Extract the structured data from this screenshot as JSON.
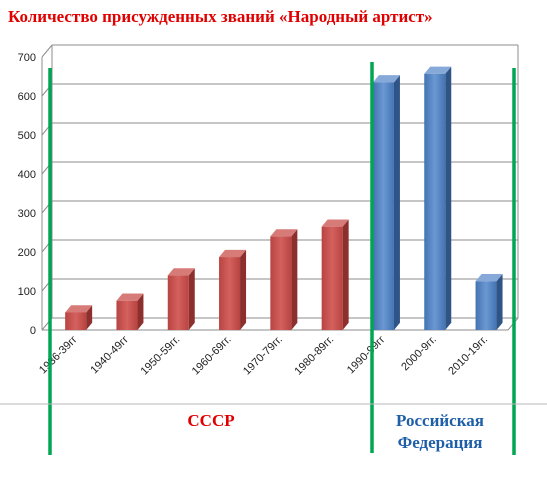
{
  "chart_data": {
    "type": "bar",
    "title": "Количество присужденных званий «Народный артист»",
    "categories": [
      "1936-39гг",
      "1940-49гг",
      "1950-59гг.",
      "1960-69гг.",
      "1970-79гг.",
      "1980-89гг.",
      "1990-99гг",
      "2000-9гг.",
      "2010-19гг."
    ],
    "values": [
      45,
      75,
      140,
      187,
      240,
      265,
      635,
      657,
      125
    ],
    "ylim": [
      0,
      700
    ],
    "yticks": [
      0,
      100,
      200,
      300,
      400,
      500,
      600,
      700
    ],
    "grid": true,
    "groups": [
      {
        "label": "СССР",
        "categories": [
          0,
          5
        ],
        "color": "#c0504d"
      },
      {
        "label": "Российская Федерация",
        "label_lines": [
          "Российская",
          "Федерация"
        ],
        "categories": [
          6,
          8
        ],
        "color": "#4f81bd"
      }
    ],
    "divider_color": "#00a651"
  }
}
